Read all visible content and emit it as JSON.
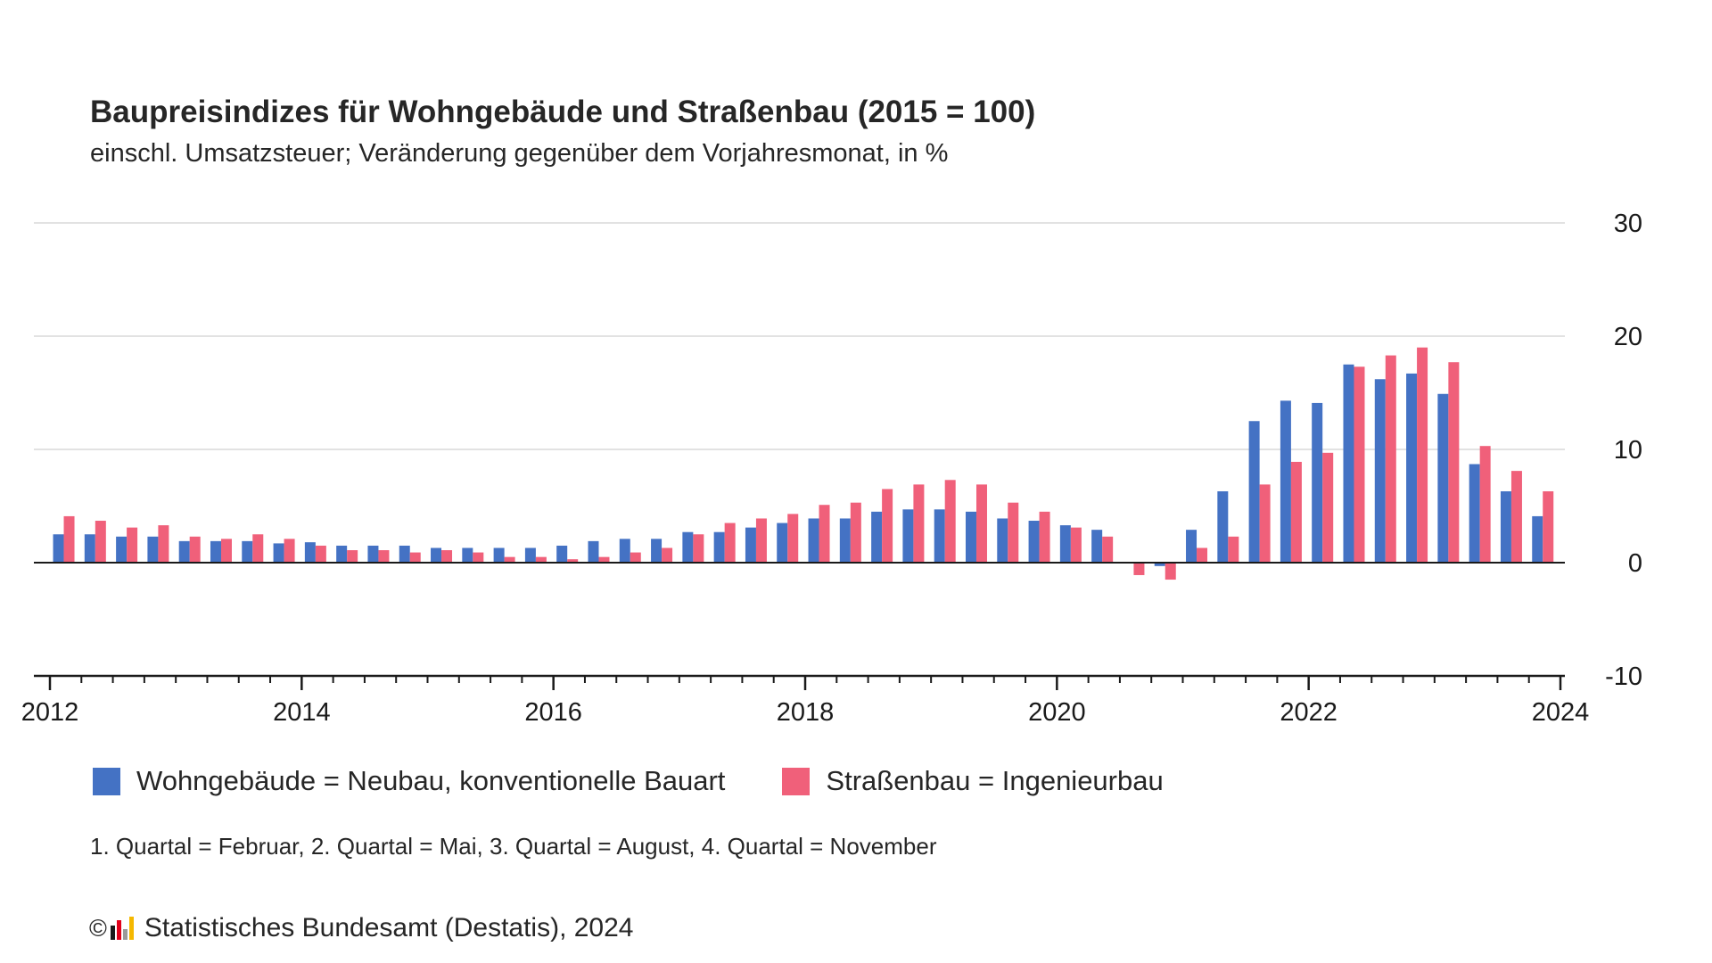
{
  "title": "Baupreisindizes für Wohngebäude und Straßenbau (2015 = 100)",
  "subtitle": "einschl. Umsatzsteuer; Veränderung gegenüber dem Vorjahresmonat, in %",
  "legend": {
    "series1": "Wohngebäude = Neubau, konventionelle Bauart",
    "series2": "Straßenbau = Ingenieurbau"
  },
  "note": "1. Quartal = Februar, 2. Quartal = Mai, 3. Quartal = August, 4. Quartal = November",
  "source": {
    "copyright_symbol": "©",
    "logo_icon": "destatis-logo-icon",
    "text": "Statistisches Bundesamt (Destatis), 2024"
  },
  "colors": {
    "series1": "#4472c4",
    "series2": "#f0607a",
    "grid": "#d9d9d9",
    "axis": "#1a1a1a"
  },
  "chart_data": {
    "type": "bar",
    "title": "Baupreisindizes für Wohngebäude und Straßenbau (2015 = 100)",
    "subtitle": "einschl. Umsatzsteuer; Veränderung gegenüber dem Vorjahresmonat, in %",
    "xlabel": "",
    "ylabel": "",
    "x_tick_labels": [
      "2012",
      "2014",
      "2016",
      "2018",
      "2020",
      "2022",
      "2024"
    ],
    "y_ticks": [
      30,
      20,
      10,
      0,
      -10
    ],
    "ylim": [
      -10,
      30
    ],
    "grid": true,
    "legend_position": "bottom",
    "y_axis_position": "right",
    "categories": [
      "2012-02",
      "2012-05",
      "2012-08",
      "2012-11",
      "2013-02",
      "2013-05",
      "2013-08",
      "2013-11",
      "2014-02",
      "2014-05",
      "2014-08",
      "2014-11",
      "2015-02",
      "2015-05",
      "2015-08",
      "2015-11",
      "2016-02",
      "2016-05",
      "2016-08",
      "2016-11",
      "2017-02",
      "2017-05",
      "2017-08",
      "2017-11",
      "2018-02",
      "2018-05",
      "2018-08",
      "2018-11",
      "2019-02",
      "2019-05",
      "2019-08",
      "2019-11",
      "2020-02",
      "2020-05",
      "2020-08",
      "2020-11",
      "2021-02",
      "2021-05",
      "2021-08",
      "2021-11",
      "2022-02",
      "2022-05",
      "2022-08",
      "2022-11",
      "2023-02",
      "2023-05",
      "2023-08",
      "2023-11"
    ],
    "series": [
      {
        "name": "Wohngebäude = Neubau, konventionelle Bauart",
        "values": [
          2.5,
          2.5,
          2.3,
          2.3,
          1.9,
          1.9,
          1.9,
          1.7,
          1.8,
          1.5,
          1.5,
          1.5,
          1.3,
          1.3,
          1.3,
          1.3,
          1.5,
          1.9,
          2.1,
          2.1,
          2.7,
          2.7,
          3.1,
          3.5,
          3.9,
          3.9,
          4.5,
          4.7,
          4.7,
          4.5,
          3.9,
          3.7,
          3.3,
          2.9,
          0.0,
          -0.3,
          2.9,
          6.3,
          12.5,
          14.3,
          14.1,
          17.5,
          16.2,
          16.7,
          14.9,
          8.7,
          6.3,
          4.1
        ]
      },
      {
        "name": "Straßenbau = Ingenieurbau",
        "values": [
          4.1,
          3.7,
          3.1,
          3.3,
          2.3,
          2.1,
          2.5,
          2.1,
          1.5,
          1.1,
          1.1,
          0.9,
          1.1,
          0.9,
          0.5,
          0.5,
          0.3,
          0.5,
          0.9,
          1.3,
          2.5,
          3.5,
          3.9,
          4.3,
          5.1,
          5.3,
          6.5,
          6.9,
          7.3,
          6.9,
          5.3,
          4.5,
          3.1,
          2.3,
          -1.1,
          -1.5,
          1.3,
          2.3,
          6.9,
          8.9,
          9.7,
          17.3,
          18.3,
          19.0,
          17.7,
          10.3,
          8.1,
          6.3
        ]
      }
    ]
  }
}
